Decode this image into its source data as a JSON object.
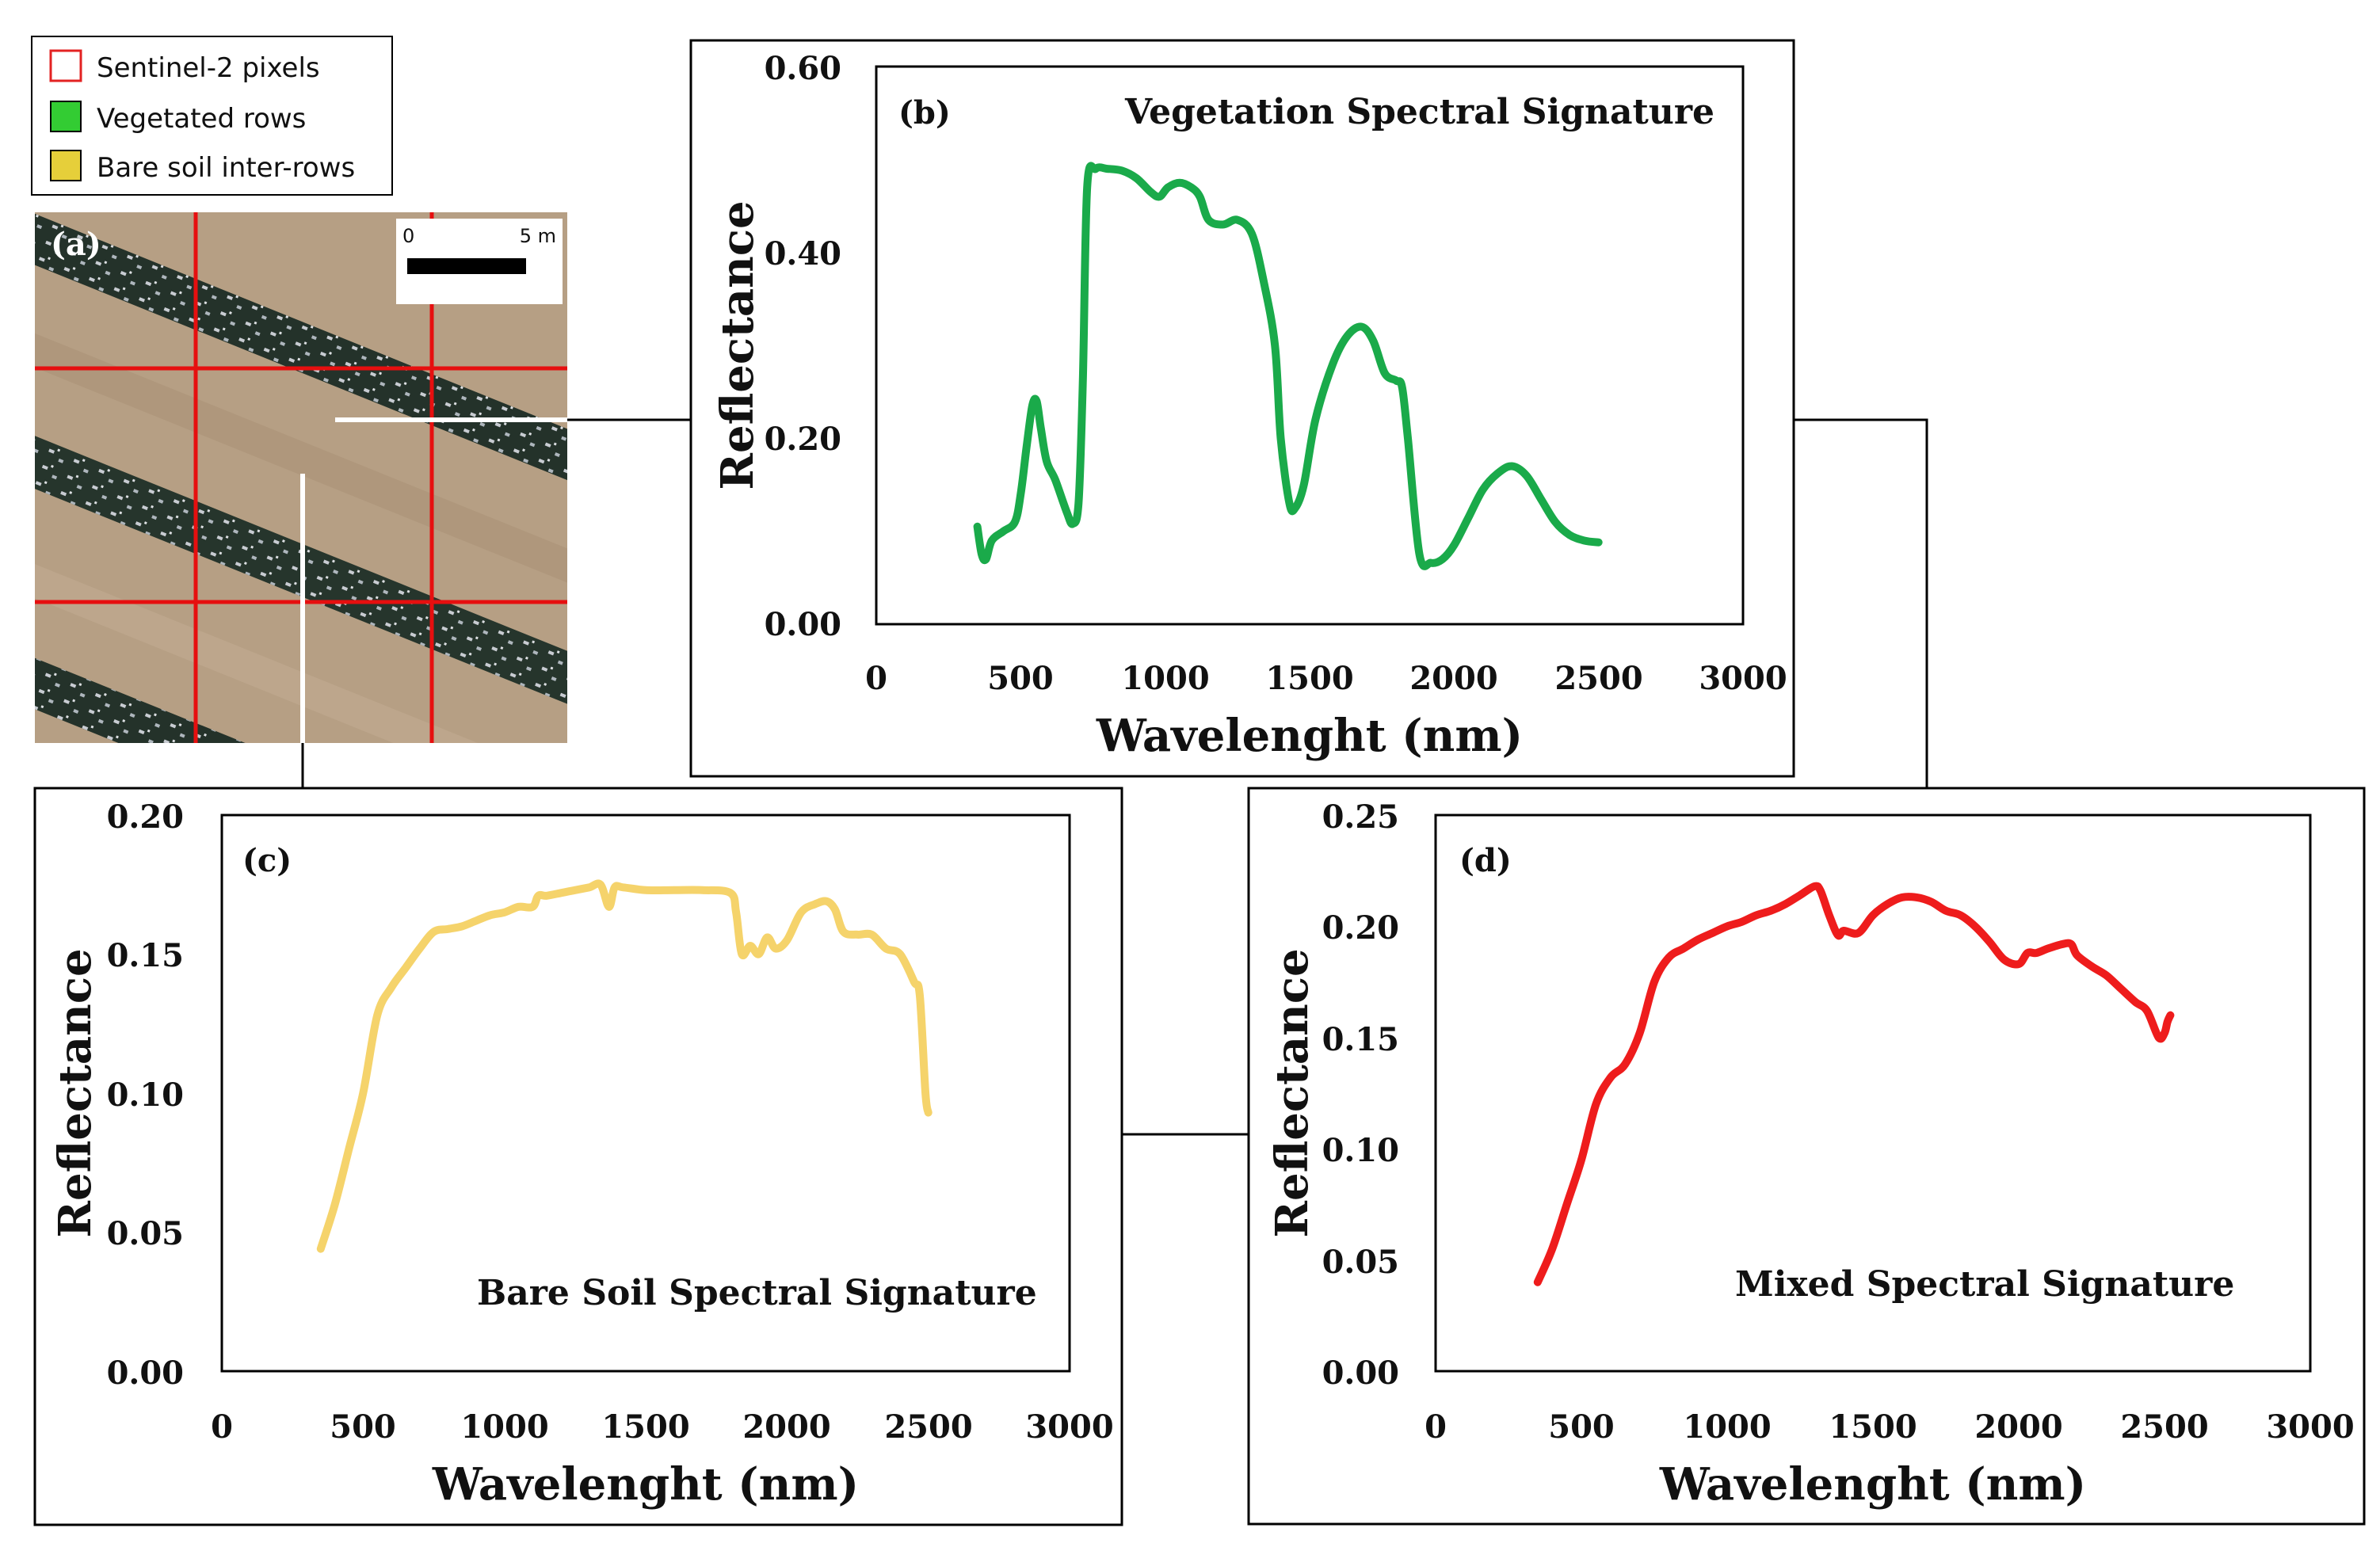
{
  "legend": {
    "items": [
      {
        "label": "Sentinel-2 pixels",
        "color": "#e32222",
        "style": "outline"
      },
      {
        "label": "Vegetated rows",
        "color": "#33cc33",
        "style": "fill"
      },
      {
        "label": "Bare soil inter-rows",
        "color": "#e6cf3a",
        "style": "fill"
      }
    ]
  },
  "aerial": {
    "tag": "(a)",
    "scale_start": "0",
    "scale_end": "5 m"
  },
  "chart_data": [
    {
      "panel": "b",
      "tag": "(b)",
      "type": "line",
      "title": "Vegetation Spectral Signature",
      "xlabel": "Wavelenght (nm)",
      "ylabel": "Reflectance",
      "xlim": [
        0,
        3000
      ],
      "ylim": [
        0,
        0.6
      ],
      "xticks": [
        "0",
        "500",
        "1000",
        "1500",
        "2000",
        "2500",
        "3000"
      ],
      "yticks": [
        "0.00",
        "0.20",
        "0.40",
        "0.60"
      ],
      "color": "#1aaa4a",
      "series": [
        {
          "name": "Vegetation",
          "x": [
            350,
            365,
            380,
            400,
            440,
            480,
            500,
            520,
            540,
            555,
            570,
            590,
            620,
            660,
            680,
            700,
            715,
            730,
            760,
            800,
            850,
            900,
            950,
            980,
            1010,
            1050,
            1090,
            1120,
            1150,
            1200,
            1250,
            1300,
            1340,
            1380,
            1400,
            1430,
            1450,
            1480,
            1520,
            1580,
            1630,
            1680,
            1720,
            1760,
            1800,
            1820,
            1840,
            1880,
            1920,
            1960,
            2000,
            2050,
            2100,
            2150,
            2200,
            2250,
            2300,
            2350,
            2400,
            2450,
            2500
          ],
          "y": [
            0.105,
            0.075,
            0.07,
            0.09,
            0.1,
            0.11,
            0.14,
            0.19,
            0.235,
            0.24,
            0.21,
            0.175,
            0.155,
            0.12,
            0.108,
            0.13,
            0.26,
            0.47,
            0.49,
            0.49,
            0.488,
            0.48,
            0.465,
            0.46,
            0.47,
            0.475,
            0.47,
            0.46,
            0.435,
            0.43,
            0.435,
            0.42,
            0.37,
            0.3,
            0.2,
            0.13,
            0.125,
            0.15,
            0.22,
            0.28,
            0.31,
            0.32,
            0.305,
            0.27,
            0.262,
            0.255,
            0.2,
            0.075,
            0.066,
            0.07,
            0.085,
            0.115,
            0.145,
            0.162,
            0.17,
            0.16,
            0.135,
            0.11,
            0.096,
            0.09,
            0.088
          ]
        }
      ]
    },
    {
      "panel": "c",
      "tag": "(c)",
      "type": "line",
      "title": "Bare Soil Spectral Signature",
      "xlabel": "Wavelenght (nm)",
      "ylabel": "Reflectance",
      "xlim": [
        0,
        3000
      ],
      "ylim": [
        0,
        0.2
      ],
      "xticks": [
        "0",
        "500",
        "1000",
        "1500",
        "2000",
        "2500",
        "3000"
      ],
      "yticks": [
        "0.00",
        "0.05",
        "0.10",
        "0.15",
        "0.20"
      ],
      "color": "#f5d36b",
      "series": [
        {
          "name": "Bare soil",
          "x": [
            350,
            400,
            450,
            500,
            550,
            600,
            650,
            700,
            750,
            800,
            850,
            900,
            950,
            1000,
            1050,
            1100,
            1120,
            1150,
            1200,
            1250,
            1300,
            1340,
            1370,
            1390,
            1420,
            1500,
            1600,
            1700,
            1800,
            1820,
            1840,
            1870,
            1900,
            1930,
            1960,
            2000,
            2050,
            2100,
            2140,
            2170,
            2200,
            2250,
            2300,
            2350,
            2400,
            2450,
            2470,
            2490,
            2500
          ],
          "y": [
            0.044,
            0.06,
            0.08,
            0.1,
            0.128,
            0.138,
            0.145,
            0.152,
            0.158,
            0.159,
            0.16,
            0.162,
            0.164,
            0.165,
            0.167,
            0.167,
            0.171,
            0.171,
            0.172,
            0.173,
            0.174,
            0.175,
            0.167,
            0.174,
            0.174,
            0.173,
            0.173,
            0.173,
            0.172,
            0.165,
            0.15,
            0.153,
            0.15,
            0.156,
            0.152,
            0.155,
            0.165,
            0.168,
            0.169,
            0.166,
            0.158,
            0.157,
            0.157,
            0.152,
            0.15,
            0.14,
            0.135,
            0.1,
            0.093
          ]
        }
      ]
    },
    {
      "panel": "d",
      "tag": "(d)",
      "type": "line",
      "title": "Mixed Spectral Signature",
      "xlabel": "Wavelenght (nm)",
      "ylabel": "Reflectance",
      "xlim": [
        0,
        3000
      ],
      "ylim": [
        0,
        0.25
      ],
      "xticks": [
        "0",
        "500",
        "1000",
        "1500",
        "2000",
        "2500",
        "3000"
      ],
      "yticks": [
        "0.00",
        "0.05",
        "0.10",
        "0.15",
        "0.20",
        "0.25"
      ],
      "color": "#ee1c1c",
      "series": [
        {
          "name": "Mixed",
          "x": [
            350,
            400,
            450,
            500,
            550,
            600,
            650,
            700,
            750,
            800,
            850,
            900,
            950,
            1000,
            1050,
            1100,
            1150,
            1200,
            1250,
            1300,
            1320,
            1350,
            1380,
            1400,
            1450,
            1500,
            1550,
            1600,
            1650,
            1700,
            1750,
            1800,
            1850,
            1900,
            1950,
            2000,
            2030,
            2060,
            2100,
            2150,
            2180,
            2200,
            2250,
            2300,
            2350,
            2400,
            2440,
            2480,
            2500,
            2510,
            2520
          ],
          "y": [
            0.04,
            0.055,
            0.075,
            0.095,
            0.12,
            0.132,
            0.138,
            0.152,
            0.175,
            0.186,
            0.19,
            0.194,
            0.197,
            0.2,
            0.202,
            0.205,
            0.207,
            0.21,
            0.214,
            0.218,
            0.216,
            0.205,
            0.196,
            0.198,
            0.197,
            0.205,
            0.21,
            0.213,
            0.213,
            0.211,
            0.207,
            0.205,
            0.2,
            0.193,
            0.185,
            0.183,
            0.188,
            0.188,
            0.19,
            0.192,
            0.192,
            0.187,
            0.182,
            0.178,
            0.172,
            0.166,
            0.162,
            0.15,
            0.152,
            0.157,
            0.16
          ]
        }
      ]
    }
  ]
}
